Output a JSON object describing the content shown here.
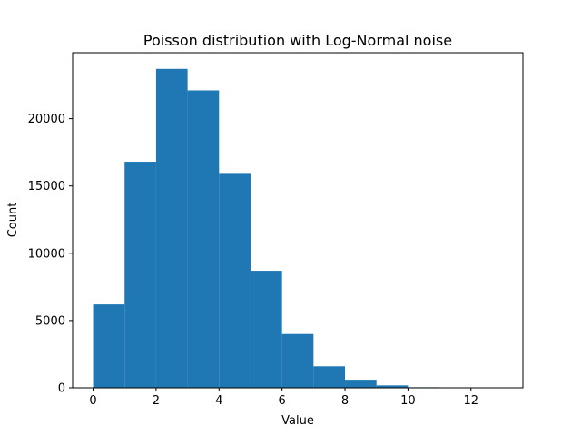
{
  "chart_data": {
    "type": "bar",
    "title": "Poisson distribution with Log-Normal noise",
    "xlabel": "Value",
    "ylabel": "Count",
    "bin_edges": [
      0,
      1,
      2,
      3,
      4,
      5,
      6,
      7,
      8,
      9,
      10,
      11,
      12,
      13
    ],
    "values": [
      6200,
      16800,
      23700,
      22100,
      15900,
      8700,
      4000,
      1600,
      600,
      180,
      40,
      10,
      2
    ],
    "xlim": [
      -0.65,
      13.65
    ],
    "ylim": [
      0,
      24900
    ],
    "xticks": [
      0,
      2,
      4,
      6,
      8,
      10,
      12
    ],
    "yticks": [
      0,
      5000,
      10000,
      15000,
      20000
    ],
    "bar_color": "#1f77b4",
    "grid": false
  }
}
